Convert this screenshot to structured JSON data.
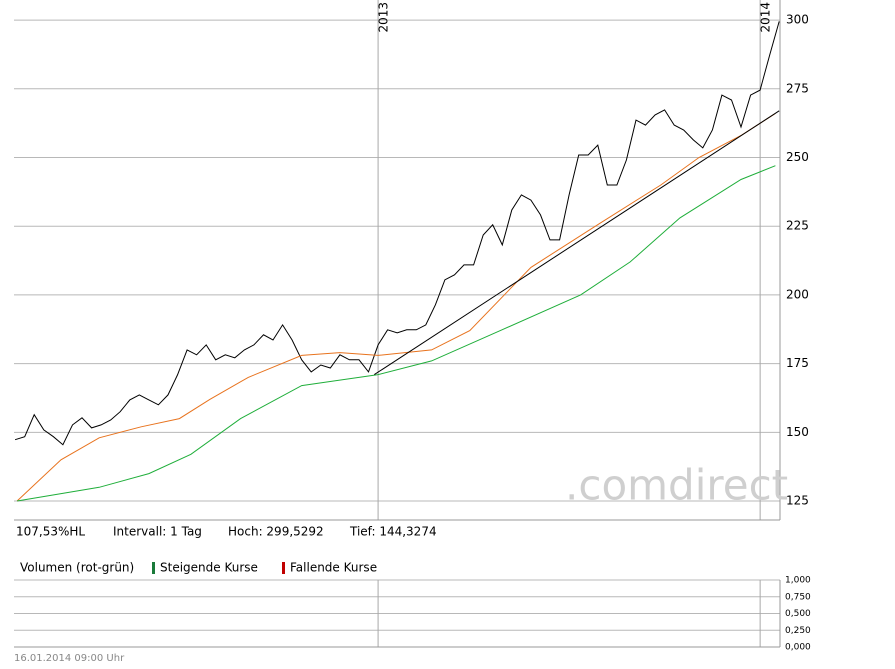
{
  "chart_data": [
    {
      "type": "line",
      "xlim": [
        2012.047,
        2014.052
      ],
      "xticks": [
        {
          "value": 2013,
          "label": "2013"
        },
        {
          "value": 2014,
          "label": "2014"
        }
      ],
      "ylim": [
        118.1,
        307.3
      ],
      "yticks": [
        125,
        150,
        175,
        200,
        225,
        250,
        275,
        300
      ],
      "grid": true,
      "watermark": ".comdirect",
      "annotations": [
        "107,53%HL",
        "Intervall: 1 Tag",
        "Hoch: 299,5292",
        "Tief: 144,3274"
      ],
      "series": [
        {
          "color": "#000000",
          "x": [
            2012.05,
            2012.075,
            2012.1,
            2012.125,
            2012.15,
            2012.175,
            2012.2,
            2012.225,
            2012.25,
            2012.275,
            2012.3,
            2012.325,
            2012.35,
            2012.375,
            2012.4,
            2012.425,
            2012.45,
            2012.475,
            2012.5,
            2012.525,
            2012.55,
            2012.575,
            2012.6,
            2012.625,
            2012.65,
            2012.675,
            2012.7,
            2012.725,
            2012.75,
            2012.775,
            2012.8,
            2012.825,
            2012.85,
            2012.875,
            2012.9,
            2012.925,
            2012.95,
            2012.975,
            2013,
            2013.025,
            2013.05,
            2013.075,
            2013.1,
            2013.125,
            2013.15,
            2013.175,
            2013.2,
            2013.225,
            2013.25,
            2013.275,
            2013.3,
            2013.325,
            2013.35,
            2013.375,
            2013.4,
            2013.425,
            2013.45,
            2013.475,
            2013.5,
            2013.525,
            2013.55,
            2013.575,
            2013.6,
            2013.625,
            2013.65,
            2013.675,
            2013.7,
            2013.725,
            2013.75,
            2013.775,
            2013.8,
            2013.825,
            2013.85,
            2013.875,
            2013.9,
            2013.925,
            2013.95,
            2013.975,
            2014,
            2014.025,
            2014.05
          ],
          "values": [
            147.3,
            148.4,
            156.4,
            150.9,
            148.4,
            145.5,
            152.7,
            155.3,
            151.6,
            152.7,
            154.5,
            157.5,
            161.8,
            163.6,
            161.8,
            160,
            163.6,
            170.9,
            180,
            178.2,
            181.8,
            176.4,
            178.2,
            177.1,
            180,
            181.8,
            185.5,
            183.6,
            189.1,
            183.6,
            176.4,
            172,
            174.5,
            173.4,
            178.2,
            176.4,
            176.4,
            172,
            181.8,
            187.3,
            186.2,
            187.3,
            187.3,
            189.1,
            196.4,
            205.5,
            207.3,
            210.9,
            210.9,
            221.8,
            225.5,
            218.2,
            230.9,
            236.4,
            234.5,
            229.1,
            220,
            220,
            236.4,
            250.9,
            250.9,
            254.5,
            240,
            240,
            249.1,
            263.6,
            261.8,
            265.5,
            267.3,
            261.8,
            260,
            256.4,
            253.5,
            260,
            272.7,
            270.9,
            261.1,
            272.7,
            274.5,
            287.3,
            299.5
          ]
        },
        {
          "color": "#e8731e",
          "x": [
            2012.055,
            2012.17,
            2012.27,
            2012.38,
            2012.48,
            2012.56,
            2012.66,
            2012.8,
            2012.9,
            2013,
            2013.14,
            2013.24,
            2013.4,
            2013.58,
            2013.74,
            2013.84,
            2013.95,
            2014.04
          ],
          "values": [
            125,
            140,
            148,
            152,
            155,
            162,
            170,
            178,
            179,
            178,
            180,
            187,
            210,
            226,
            240,
            250,
            258,
            266
          ]
        },
        {
          "color": "#1fae3a",
          "x": [
            2012.055,
            2012.27,
            2012.4,
            2012.51,
            2012.64,
            2012.8,
            2013,
            2013.14,
            2013.32,
            2013.53,
            2013.66,
            2013.79,
            2013.95,
            2014.04
          ],
          "values": [
            125,
            130,
            135,
            142,
            155,
            167,
            171,
            176,
            187,
            200,
            212,
            228,
            242,
            247
          ]
        },
        {
          "color": "#000000",
          "x": [
            2012.99,
            2014.05
          ],
          "values": [
            171,
            267
          ]
        }
      ]
    },
    {
      "type": "bar",
      "legend_title": "Volumen (rot-grün)",
      "xlim": [
        2012.047,
        2014.052
      ],
      "xticks": [
        2013,
        2014
      ],
      "ylim": [
        0,
        1
      ],
      "yticks": [
        {
          "value": 1,
          "label": "1,000"
        },
        {
          "value": 0.75,
          "label": "0,750"
        },
        {
          "value": 0.5,
          "label": "0,500"
        },
        {
          "value": 0.25,
          "label": "0,250"
        },
        {
          "value": 0,
          "label": "0,000"
        }
      ],
      "grid": true,
      "series": [
        {
          "name": "Steigende Kurse",
          "color": "#1a7a3a",
          "values": []
        },
        {
          "name": "Fallende Kurse",
          "color": "#c00000",
          "values": []
        }
      ]
    }
  ],
  "footer": {
    "timestamp": "16.01.2014 09:00 Uhr"
  }
}
